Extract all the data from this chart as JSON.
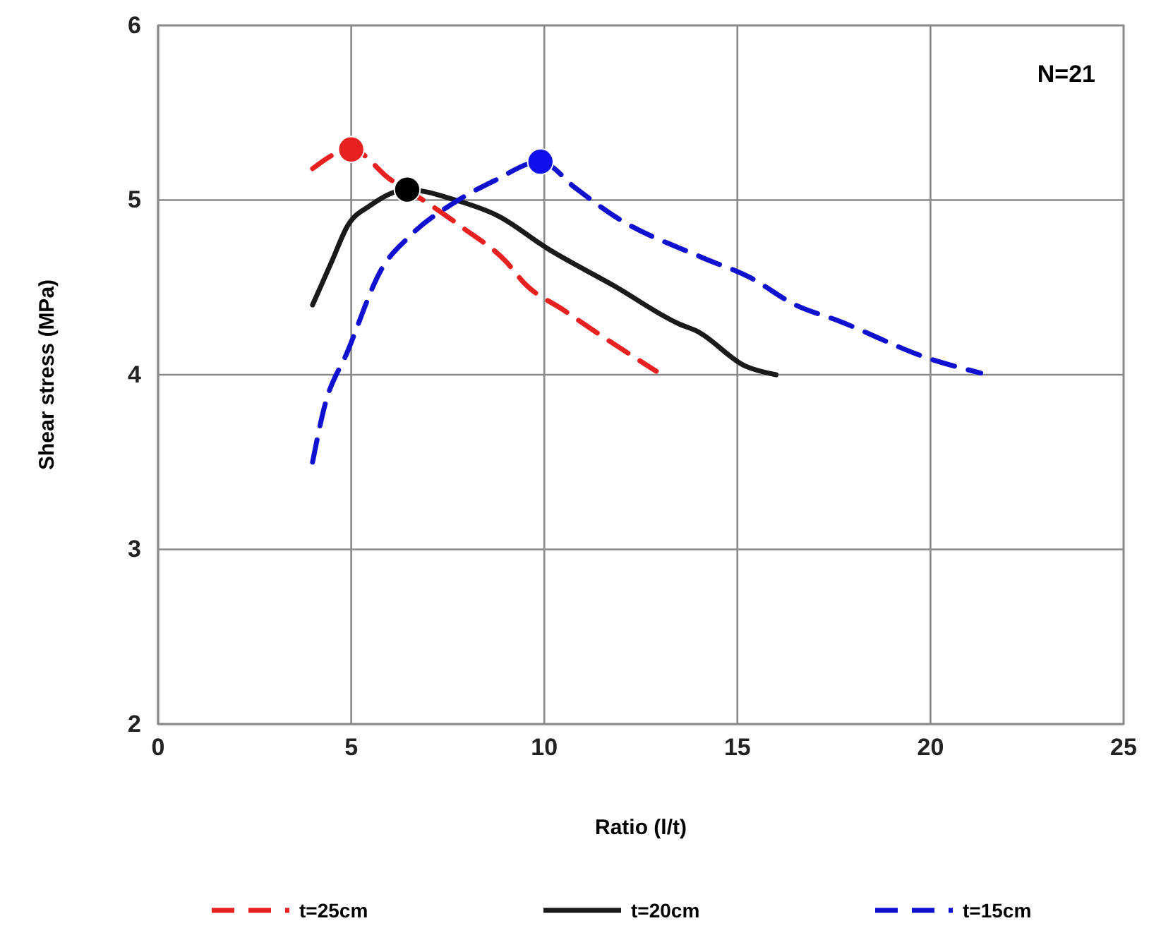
{
  "chart_data": {
    "type": "line",
    "xlabel": "Ratio (l/t)",
    "ylabel": "Shear stress (MPa)",
    "xlim": [
      0,
      25
    ],
    "xticks": [
      0,
      5,
      10,
      15,
      20,
      25
    ],
    "ylim": [
      2,
      6
    ],
    "yticks": [
      2,
      3,
      4,
      5,
      6
    ],
    "grid": true,
    "legend": "bottom",
    "marker": "none",
    "annotations": [
      "N=21"
    ],
    "series": [
      {
        "name": "t=25cm",
        "color": "#e8201f",
        "line_style": "dashed",
        "x": [
          4,
          5,
          6,
          7,
          7.9,
          9,
          9.5,
          10.5,
          11.5,
          12.9
        ],
        "values": [
          5.18,
          5.29,
          5.12,
          4.98,
          4.84,
          4.65,
          4.52,
          4.37,
          4.22,
          4.02
        ]
      },
      {
        "name": "t=20cm",
        "color": "#1a1a1a",
        "line_style": "solid",
        "x": [
          4,
          4.5,
          4.9,
          5.5,
          6.45,
          7.7,
          8.8,
          10.1,
          11.8,
          13.5,
          13.95,
          15.2,
          16
        ],
        "values": [
          4.4,
          4.65,
          4.85,
          4.97,
          5.06,
          5.0,
          4.91,
          4.72,
          4.51,
          4.29,
          4.25,
          4.05,
          4.0
        ]
      },
      {
        "name": "t=15cm",
        "color": "#1010d0",
        "line_style": "dashed",
        "x": [
          4,
          4.3,
          4.9,
          5.8,
          6.5,
          7.7,
          8.7,
          9.9,
          10.8,
          11.8,
          14.1,
          15.3,
          16.5,
          17.6,
          20,
          21.3
        ],
        "values": [
          3.5,
          3.81,
          4.13,
          4.61,
          4.79,
          4.99,
          5.11,
          5.22,
          5.07,
          4.91,
          4.67,
          4.56,
          4.4,
          4.31,
          4.09,
          4.01
        ]
      },
      {
        "type": "scatter",
        "marker": "circle",
        "color": "#e8201f",
        "x": [
          5
        ],
        "values": [
          5.29
        ]
      },
      {
        "type": "scatter",
        "marker": "circle",
        "color": "#000000",
        "x": [
          6.45
        ],
        "values": [
          5.06
        ]
      },
      {
        "type": "scatter",
        "marker": "circle",
        "color": "#1010ee",
        "x": [
          9.9
        ],
        "values": [
          5.22
        ]
      }
    ]
  }
}
